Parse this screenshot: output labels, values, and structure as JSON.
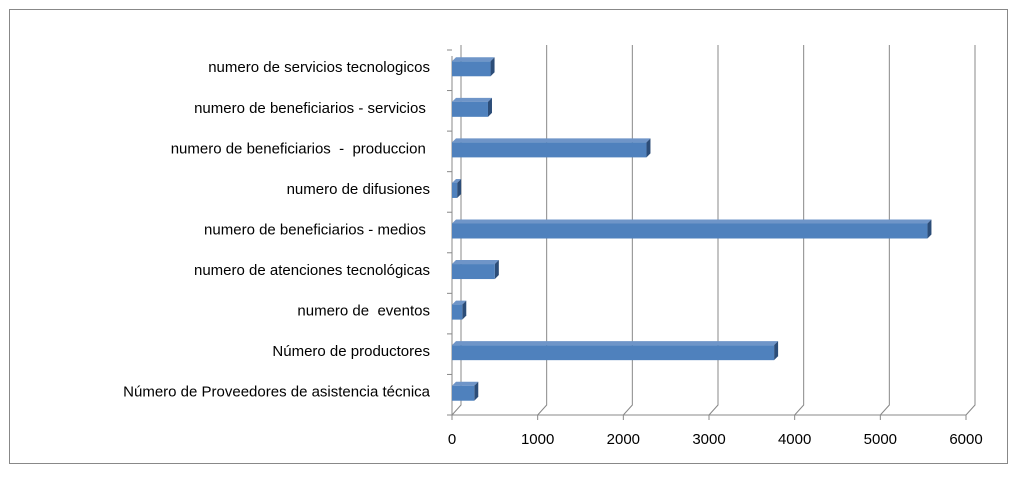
{
  "chart_data": {
    "type": "bar",
    "orientation": "horizontal",
    "categories": [
      "numero de servicios tecnologicos",
      "numero de beneficiarios - servicios ",
      "numero de beneficiarios  -  produccion ",
      "numero de difusiones",
      "numero de beneficiarios - medios ",
      "numero de atenciones tecnológicas",
      "numero de  eventos",
      "Número de productores",
      "Número de Proveedores de asistencia técnica"
    ],
    "values": [
      450,
      420,
      2270,
      60,
      5550,
      500,
      120,
      3760,
      260
    ],
    "color": "#4f81bd",
    "xlim": [
      0,
      6000
    ],
    "xticks": [
      0,
      1000,
      2000,
      3000,
      4000,
      5000,
      6000
    ],
    "grid": true
  }
}
